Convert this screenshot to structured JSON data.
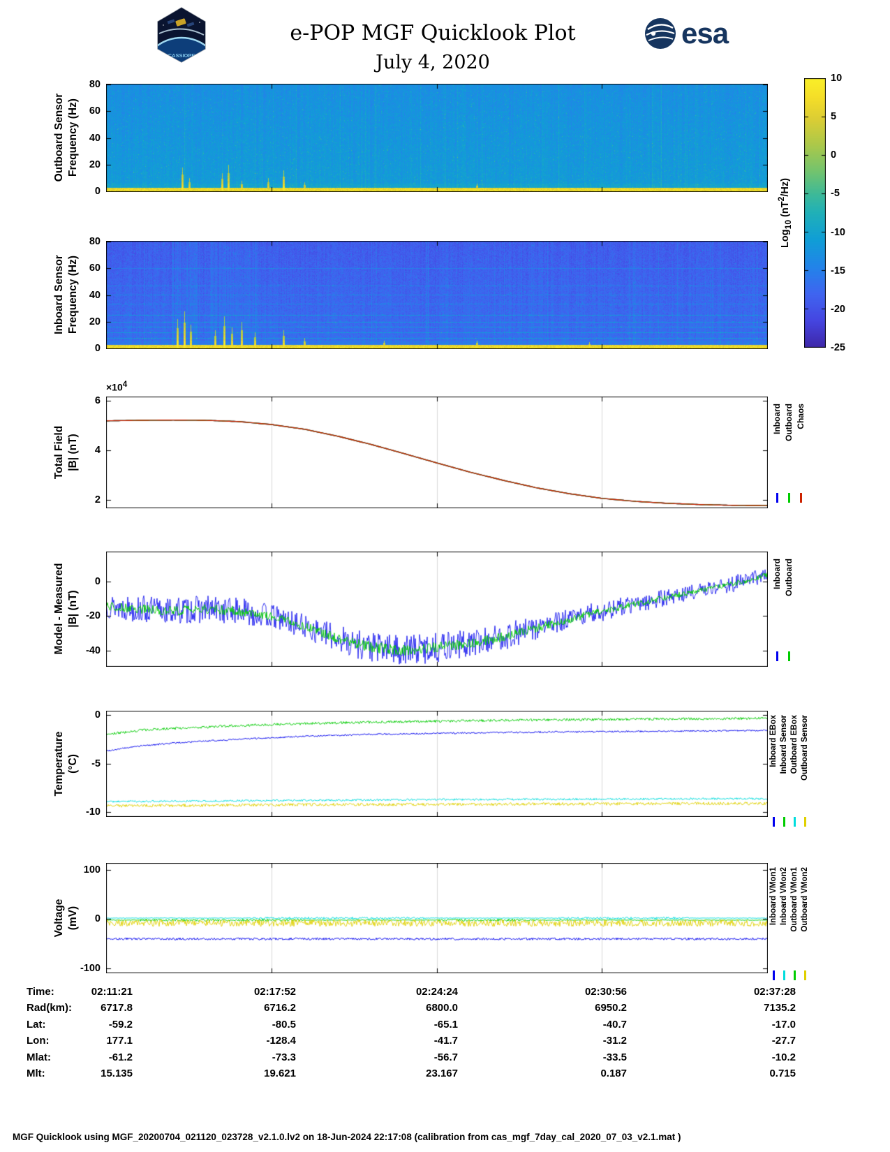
{
  "header": {
    "title": "e-POP MGF Quicklook Plot",
    "date": "July 4, 2020",
    "esa_text": "esa",
    "mission_logo": "CASSIOPE"
  },
  "colorbar": {
    "label_parts": {
      "p1": "Log",
      "sub": "10",
      "p2": " (nT",
      "sup": "2",
      "p3": "/Hz)"
    },
    "ticks": [
      10,
      5,
      0,
      -5,
      -10,
      -15,
      -20,
      -25
    ],
    "value_range": [
      -25,
      10
    ]
  },
  "chart_data": [
    {
      "id": "outboard_spectrogram",
      "type": "heatmap",
      "ylabel_lines": [
        "Outboard Sensor",
        "Frequency (Hz)"
      ],
      "ylim": [
        0,
        80
      ],
      "yticks": [
        0,
        20,
        40,
        60,
        80
      ],
      "x_time_range": [
        "02:11:21",
        "02:37:28"
      ],
      "background_level": -13,
      "gradient": 1.8,
      "bottom_band": {
        "max_hz": 3,
        "level": 7
      },
      "spikes": [
        {
          "x": 0.115,
          "max_hz": 18,
          "level": 4
        },
        {
          "x": 0.125,
          "max_hz": 10,
          "level": 3
        },
        {
          "x": 0.175,
          "max_hz": 14,
          "level": 4
        },
        {
          "x": 0.185,
          "max_hz": 20,
          "level": 4
        },
        {
          "x": 0.205,
          "max_hz": 8,
          "level": 3
        },
        {
          "x": 0.245,
          "max_hz": 10,
          "level": 3
        },
        {
          "x": 0.268,
          "max_hz": 16,
          "level": 5
        },
        {
          "x": 0.3,
          "max_hz": 7,
          "level": 3
        },
        {
          "x": 0.56,
          "max_hz": 6,
          "level": 3
        }
      ]
    },
    {
      "id": "inboard_spectrogram",
      "type": "heatmap",
      "ylabel_lines": [
        "Inboard Sensor",
        "Frequency (Hz)"
      ],
      "ylim": [
        0,
        80
      ],
      "yticks": [
        0,
        20,
        40,
        60,
        80
      ],
      "x_time_range": [
        "02:11:21",
        "02:37:28"
      ],
      "background_level": -19,
      "gradient": 2,
      "harmonic_lines_hz": [
        8,
        12,
        16,
        20,
        25,
        33,
        40,
        47,
        60
      ],
      "bottom_band": {
        "max_hz": 3,
        "level": 7
      },
      "active_regions": [
        {
          "x0": 0.1,
          "x1": 0.14,
          "boost": 5
        },
        {
          "x0": 0.16,
          "x1": 0.235,
          "boost": 4
        },
        {
          "x0": 0.64,
          "x1": 0.66,
          "boost": 2
        }
      ],
      "spikes": [
        {
          "x": 0.108,
          "max_hz": 22,
          "level": 5
        },
        {
          "x": 0.118,
          "max_hz": 28,
          "level": 5
        },
        {
          "x": 0.128,
          "max_hz": 18,
          "level": 4
        },
        {
          "x": 0.165,
          "max_hz": 14,
          "level": 4
        },
        {
          "x": 0.178,
          "max_hz": 24,
          "level": 5
        },
        {
          "x": 0.19,
          "max_hz": 16,
          "level": 4
        },
        {
          "x": 0.205,
          "max_hz": 20,
          "level": 4
        },
        {
          "x": 0.225,
          "max_hz": 12,
          "level": 4
        },
        {
          "x": 0.268,
          "max_hz": 14,
          "level": 4
        },
        {
          "x": 0.3,
          "max_hz": 8,
          "level": 3
        },
        {
          "x": 0.42,
          "max_hz": 6,
          "level": 3
        },
        {
          "x": 0.56,
          "max_hz": 6,
          "level": 3
        },
        {
          "x": 0.73,
          "max_hz": 5,
          "level": 3
        }
      ]
    },
    {
      "id": "total_field",
      "type": "line",
      "ylabel_lines": [
        "Total Field",
        "|B| (nT)"
      ],
      "y_scale_label": {
        "prefix": "×10",
        "exponent": "4"
      },
      "ylim": [
        1.7,
        6.15
      ],
      "yticks": [
        2,
        4,
        6
      ],
      "legend": [
        {
          "label": "Inboard",
          "color": "#0000ee"
        },
        {
          "label": "Outboard",
          "color": "#00cc00"
        },
        {
          "label": "Chaos",
          "color": "#cc2200"
        }
      ],
      "x": [
        0,
        0.05,
        0.1,
        0.15,
        0.2,
        0.25,
        0.3,
        0.35,
        0.4,
        0.45,
        0.5,
        0.55,
        0.6,
        0.65,
        0.7,
        0.75,
        0.8,
        0.85,
        0.9,
        0.95,
        1
      ],
      "values_1e4": [
        5.2,
        5.22,
        5.23,
        5.22,
        5.17,
        5.05,
        4.86,
        4.58,
        4.25,
        3.88,
        3.5,
        3.13,
        2.8,
        2.5,
        2.26,
        2.07,
        1.95,
        1.87,
        1.82,
        1.79,
        1.78
      ],
      "note": "Inboard, Outboard and Chaos model curves overlap"
    },
    {
      "id": "model_minus_measured",
      "type": "line",
      "ylabel_lines": [
        "Model - Measured",
        "|B| (nT)"
      ],
      "ylim": [
        -49,
        17
      ],
      "yticks": [
        0,
        -20,
        -40
      ],
      "legend": [
        {
          "label": "Inboard",
          "color": "#0000ee"
        },
        {
          "label": "Outboard",
          "color": "#00cc00"
        }
      ],
      "x": [
        0,
        0.05,
        0.1,
        0.15,
        0.2,
        0.25,
        0.3,
        0.35,
        0.4,
        0.45,
        0.5,
        0.55,
        0.6,
        0.65,
        0.7,
        0.75,
        0.8,
        0.85,
        0.9,
        0.95,
        1
      ],
      "baseline": [
        -14,
        -16,
        -17,
        -16,
        -17,
        -20,
        -26,
        -33,
        -38,
        -40,
        -38,
        -36,
        -32,
        -27,
        -22,
        -17,
        -13,
        -9,
        -5,
        -1,
        4
      ],
      "noise_amplitude_inboard": [
        7,
        8,
        8,
        8,
        8,
        7,
        7,
        8,
        9,
        9,
        9,
        8,
        8,
        7,
        6,
        6,
        5,
        5,
        4,
        5,
        4
      ],
      "outboard_amplitude_factor": 0.35
    },
    {
      "id": "temperature",
      "type": "line",
      "ylabel_lines": [
        "Temperature",
        "(°C)"
      ],
      "ylim": [
        -10.4,
        0.35
      ],
      "yticks": [
        0,
        -5,
        -10
      ],
      "legend": [
        {
          "label": "Inboard EBox",
          "color": "#0000ee"
        },
        {
          "label": "Inboard Sensor",
          "color": "#00cc00"
        },
        {
          "label": "Outboard EBox",
          "color": "#00dddd"
        },
        {
          "label": "Outboard Sensor",
          "color": "#e0d000"
        }
      ],
      "x": [
        0,
        0.05,
        0.1,
        0.15,
        0.2,
        0.3,
        0.4,
        0.5,
        0.6,
        0.7,
        0.8,
        0.9,
        1
      ],
      "series": [
        {
          "name": "Inboard EBox",
          "color": "#0000ee",
          "values": [
            -3.7,
            -3.2,
            -2.9,
            -2.7,
            -2.5,
            -2.2,
            -2.0,
            -1.9,
            -1.8,
            -1.75,
            -1.7,
            -1.65,
            -1.6
          ],
          "noise": 0.08
        },
        {
          "name": "Inboard Sensor",
          "color": "#00cc00",
          "values": [
            -2.0,
            -1.6,
            -1.4,
            -1.25,
            -1.1,
            -0.9,
            -0.75,
            -0.65,
            -0.55,
            -0.5,
            -0.45,
            -0.4,
            -0.35
          ],
          "noise": 0.13
        },
        {
          "name": "Outboard EBox",
          "color": "#00dddd",
          "values": [
            -8.9,
            -8.88,
            -8.86,
            -8.84,
            -8.82,
            -8.78,
            -8.74,
            -8.7,
            -8.68,
            -8.66,
            -8.64,
            -8.62,
            -8.6
          ],
          "noise": 0.1
        },
        {
          "name": "Outboard Sensor",
          "color": "#e0d000",
          "values": [
            -9.35,
            -9.33,
            -9.3,
            -9.28,
            -9.26,
            -9.22,
            -9.2,
            -9.18,
            -9.16,
            -9.14,
            -9.12,
            -9.1,
            -9.1
          ],
          "noise": 0.15
        }
      ]
    },
    {
      "id": "voltage",
      "type": "line",
      "ylabel_lines": [
        "Voltage",
        "(mV)"
      ],
      "ylim": [
        -108,
        112
      ],
      "yticks": [
        100,
        0,
        -100
      ],
      "legend": [
        {
          "label": "Inboard VMon1",
          "color": "#0000ee"
        },
        {
          "label": "Inboard VMon2",
          "color": "#00dddd"
        },
        {
          "label": "Outboard VMon1",
          "color": "#00cc00"
        },
        {
          "label": "Outboard VMon2",
          "color": "#e0d000"
        }
      ],
      "series": [
        {
          "name": "Outboard VMon1",
          "color": "#00cc00",
          "level": -2,
          "noise": 2.5,
          "bursts": [
            [
              0.05,
              0.3
            ],
            [
              0.5,
              0.65
            ]
          ]
        },
        {
          "name": "Outboard VMon2",
          "color": "#e0d000",
          "level": -8,
          "noise": 7
        },
        {
          "name": "Inboard VMon2",
          "color": "#00dddd",
          "level": 2,
          "noise": 2.2,
          "bursts": [
            [
              0.22,
              0.48
            ],
            [
              0.68,
              0.88
            ]
          ]
        },
        {
          "name": "Inboard VMon1",
          "color": "#0000ee",
          "level": -40,
          "noise": 2.2
        }
      ]
    }
  ],
  "table": {
    "rows": [
      {
        "label": "Time:",
        "values": [
          "02:11:21",
          "02:17:52",
          "02:24:24",
          "02:30:56",
          "02:37:28"
        ]
      },
      {
        "label": "Rad(km):",
        "values": [
          "6717.8",
          "6716.2",
          "6800.0",
          "6950.2",
          "7135.2"
        ]
      },
      {
        "label": "Lat:",
        "values": [
          "-59.2",
          "-80.5",
          "-65.1",
          "-40.7",
          "-17.0"
        ]
      },
      {
        "label": "Lon:",
        "values": [
          "177.1",
          "-128.4",
          "-41.7",
          "-31.2",
          "-27.7"
        ]
      },
      {
        "label": "Mlat:",
        "values": [
          "-61.2",
          "-73.3",
          "-56.7",
          "-33.5",
          "-10.2"
        ]
      },
      {
        "label": "Mlt:",
        "values": [
          "15.135",
          "19.621",
          "23.167",
          "0.187",
          "0.715"
        ]
      }
    ]
  },
  "footer": {
    "text": "MGF Quicklook using MGF_20200704_021120_023728_v2.1.0.lv2 on 18-Jun-2024 22:17:08 (calibration from cas_mgf_7day_cal_2020_07_03_v2.1.mat )"
  }
}
